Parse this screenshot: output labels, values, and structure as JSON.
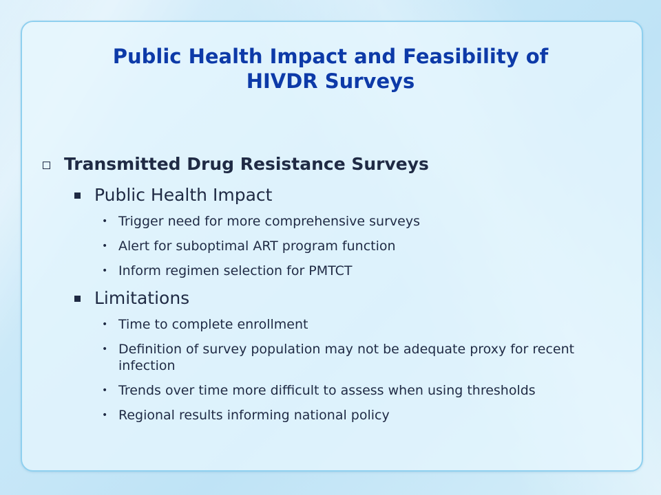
{
  "slide": {
    "title_line1": "Public Health Impact and Feasibility of",
    "title_line2": "HIVDR Surveys",
    "heading": "Transmitted Drug Resistance Surveys",
    "sections": [
      {
        "label": "Public  Health Impact",
        "bullets": [
          "Trigger need for more comprehensive surveys",
          "Alert for suboptimal ART program function",
          "Inform regimen selection for PMTCT"
        ]
      },
      {
        "label": "Limitations",
        "bullets": [
          "Time to complete enrollment",
          "Definition of survey population may not be adequate proxy for recent infection",
          "Trends over time more difficult to assess when using thresholds",
          "Regional results informing national policy"
        ]
      }
    ]
  },
  "colors": {
    "title": "#0d3aa8",
    "text": "#1f2a44",
    "panel_border": "#8fd0ef",
    "background": "#c9e8f8"
  },
  "icons": {
    "level1_marker": "hollow-square-icon",
    "level2_marker": "filled-square-icon",
    "level3_marker": "bullet-dot-icon"
  }
}
